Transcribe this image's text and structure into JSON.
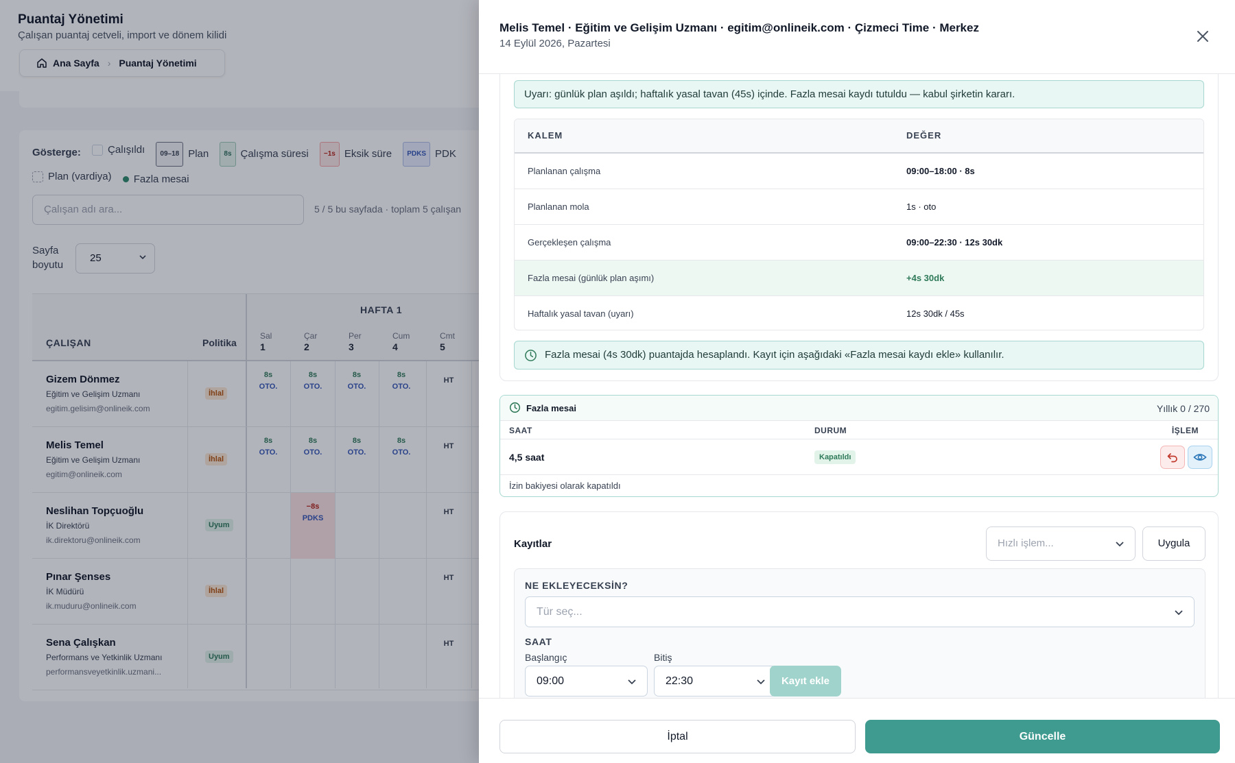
{
  "background": {
    "title": "Puantaj Yönetimi",
    "subtitle": "Çalışan puantaj cetveli, import ve dönem kilidi",
    "breadcrumb": {
      "home": "Ana Sayfa",
      "current": "Puantaj Yönetimi"
    },
    "legend": {
      "label": "Gösterge:",
      "calisildi": "Çalışıldı",
      "plan_chip": "09–18",
      "plan": "Plan",
      "sure_chip": "8s",
      "sure": "Çalışma süresi",
      "eksik_chip": "−1s",
      "eksik": "Eksik süre",
      "pdks_chip": "PDKS",
      "pdks": "PDK",
      "plan_vardiya": "Plan (vardiya)",
      "fazla_mesai": "Fazla mesai"
    },
    "search_placeholder": "Çalışan adı ara...",
    "count_text": "5 / 5 bu sayfada · toplam 5 çalışan",
    "page_size_label": "Sayfa boyutu",
    "page_size_value": "25",
    "grid": {
      "col_employee": "ÇALIŞAN",
      "col_policy": "Politika",
      "week": "HAFTA 1",
      "days": [
        {
          "name": "Sal",
          "num": "1"
        },
        {
          "name": "Çar",
          "num": "2"
        },
        {
          "name": "Per",
          "num": "3"
        },
        {
          "name": "Cum",
          "num": "4"
        },
        {
          "name": "Cmt",
          "num": "5"
        }
      ],
      "rows": [
        {
          "name": "Gizem Dönmez",
          "role": "Eğitim ve Gelişim Uzmanı",
          "email": "egitim.gelisim@onlineik.com",
          "policy": "İhlal"
        },
        {
          "name": "Melis Temel",
          "role": "Eğitim ve Gelişim Uzmanı",
          "email": "egitim@onlineik.com",
          "policy": "İhlal"
        },
        {
          "name": "Neslihan Topçuoğlu",
          "role": "İK Direktörü",
          "email": "ik.direktoru@onlineik.com",
          "policy": "Uyum"
        },
        {
          "name": "Pınar Şenses",
          "role": "İK Müdürü",
          "email": "ik.muduru@onlineik.com",
          "policy": "İhlal"
        },
        {
          "name": "Sena Çalışkan",
          "role": "Performans ve Yetkinlik Uzmanı",
          "email": "performansveyetkinlik.uzmani...",
          "policy": "Uyum"
        }
      ],
      "cell_hours": "8s",
      "cell_oto": "OTO.",
      "cell_ht": "HT",
      "cell_missing": "−8s",
      "cell_pdks": "PDKS"
    }
  },
  "drawer": {
    "title": "Melis Temel · Eğitim ve Gelişim Uzmanı · egitim@onlineik.com · Çizmeci Time · Merkez",
    "subtitle": "14 Eylül 2026, Pazartesi",
    "warning": "Uyarı: günlük plan aşıldı; haftalık yasal tavan (45s) içinde. Fazla mesai kaydı tutuldu — kabul şirketin kararı.",
    "table": {
      "col_item": "KALEM",
      "col_value": "DEĞER",
      "rows": [
        {
          "k": "Planlanan çalışma",
          "v": "09:00–18:00 · 8s"
        },
        {
          "k": "Planlanan mola",
          "v": "1s · oto"
        },
        {
          "k": "Gerçekleşen çalışma",
          "v": "09:00–22:30 · 12s 30dk"
        },
        {
          "k": "Fazla mesai (günlük plan aşımı)",
          "v": "+4s 30dk"
        },
        {
          "k": "Haftalık yasal tavan (uyarı)",
          "v": "12s 30dk / 45s"
        }
      ]
    },
    "info": "Fazla mesai (4s 30dk) puantajda hesaplandı. Kayıt için aşağıdaki «Fazla mesai kaydı ekle» kullanılır.",
    "overtime": {
      "title": "Fazla mesai",
      "yearly": "Yıllık 0 / 270",
      "col_saat": "SAAT",
      "col_durum": "DURUM",
      "col_islem": "İŞLEM",
      "hours": "4,5 saat",
      "status": "Kapatıldı",
      "note": "İzin bakiyesi olarak kapatıldı"
    },
    "records": {
      "title": "Kayıtlar",
      "quick_placeholder": "Hızlı işlem...",
      "apply": "Uygula",
      "what_label": "NE EKLEYECEKSİN?",
      "type_placeholder": "Tür seç...",
      "saat_label": "SAAT",
      "start_label": "Başlangıç",
      "end_label": "Bitiş",
      "start_value": "09:00",
      "end_value": "22:30",
      "add_button": "Kayıt ekle"
    },
    "footer": {
      "cancel": "İptal",
      "update": "Güncelle"
    }
  },
  "colors": {
    "accent": "#3f9a8f",
    "success": "#2f7a59",
    "danger": "#b42318",
    "info": "#3557b7"
  }
}
